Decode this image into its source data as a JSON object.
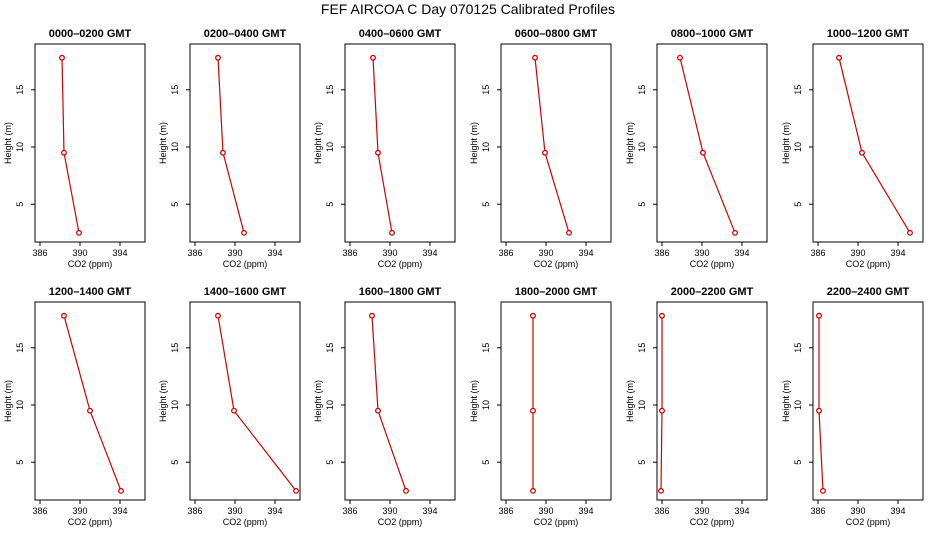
{
  "title": "FEF AIRCOA C  Day 070125  Calibrated Profiles",
  "colors": {
    "series": "#d40000",
    "axis": "#000000"
  },
  "chart_data": [
    {
      "type": "line",
      "title": "0000–0200 GMT",
      "xlabel": "CO2 (ppm)",
      "ylabel": "Height (m)",
      "xlim": [
        385.5,
        396.5
      ],
      "ylim": [
        1.7,
        19
      ],
      "xticks": [
        386,
        390,
        394
      ],
      "yticks": [
        5,
        10,
        15
      ],
      "x": [
        388.2,
        388.4,
        389.9
      ],
      "y": [
        17.8,
        9.5,
        2.5
      ]
    },
    {
      "type": "line",
      "title": "0200–0400 GMT",
      "xlabel": "CO2 (ppm)",
      "ylabel": "Height (m)",
      "xlim": [
        385.5,
        396.5
      ],
      "ylim": [
        1.7,
        19
      ],
      "xticks": [
        386,
        390,
        394
      ],
      "yticks": [
        5,
        10,
        15
      ],
      "x": [
        388.3,
        388.8,
        390.9
      ],
      "y": [
        17.8,
        9.5,
        2.5
      ]
    },
    {
      "type": "line",
      "title": "0400–0600 GMT",
      "xlabel": "CO2 (ppm)",
      "ylabel": "Height (m)",
      "xlim": [
        385.5,
        396.5
      ],
      "ylim": [
        1.7,
        19
      ],
      "xticks": [
        386,
        390,
        394
      ],
      "yticks": [
        5,
        10,
        15
      ],
      "x": [
        388.3,
        388.8,
        390.2
      ],
      "y": [
        17.8,
        9.5,
        2.5
      ]
    },
    {
      "type": "line",
      "title": "0600–0800 GMT",
      "xlabel": "CO2 (ppm)",
      "ylabel": "Height (m)",
      "xlim": [
        385.5,
        396.5
      ],
      "ylim": [
        1.7,
        19
      ],
      "xticks": [
        386,
        390,
        394
      ],
      "yticks": [
        5,
        10,
        15
      ],
      "x": [
        388.9,
        389.9,
        392.3
      ],
      "y": [
        17.8,
        9.5,
        2.5
      ]
    },
    {
      "type": "line",
      "title": "0800–1000 GMT",
      "xlabel": "CO2 (ppm)",
      "ylabel": "Height (m)",
      "xlim": [
        385.5,
        396.5
      ],
      "ylim": [
        1.7,
        19
      ],
      "xticks": [
        386,
        390,
        394
      ],
      "yticks": [
        5,
        10,
        15
      ],
      "x": [
        387.8,
        390.1,
        393.3
      ],
      "y": [
        17.8,
        9.5,
        2.5
      ]
    },
    {
      "type": "line",
      "title": "1000–1200 GMT",
      "xlabel": "CO2 (ppm)",
      "ylabel": "Height (m)",
      "xlim": [
        385.5,
        396.5
      ],
      "ylim": [
        1.7,
        19
      ],
      "xticks": [
        386,
        390,
        394
      ],
      "yticks": [
        5,
        10,
        15
      ],
      "x": [
        388.1,
        390.4,
        395.2
      ],
      "y": [
        17.8,
        9.5,
        2.5
      ]
    },
    {
      "type": "line",
      "title": "1200–1400 GMT",
      "xlabel": "CO2 (ppm)",
      "ylabel": "Height (m)",
      "xlim": [
        385.5,
        396.5
      ],
      "ylim": [
        1.7,
        19
      ],
      "xticks": [
        386,
        390,
        394
      ],
      "yticks": [
        5,
        10,
        15
      ],
      "x": [
        388.4,
        391.0,
        394.1
      ],
      "y": [
        17.8,
        9.5,
        2.5
      ]
    },
    {
      "type": "line",
      "title": "1400–1600 GMT",
      "xlabel": "CO2 (ppm)",
      "ylabel": "Height (m)",
      "xlim": [
        385.5,
        396.5
      ],
      "ylim": [
        1.7,
        19
      ],
      "xticks": [
        386,
        390,
        394
      ],
      "yticks": [
        5,
        10,
        15
      ],
      "x": [
        388.3,
        389.9,
        396.1
      ],
      "y": [
        17.8,
        9.5,
        2.5
      ]
    },
    {
      "type": "line",
      "title": "1600–1800 GMT",
      "xlabel": "CO2 (ppm)",
      "ylabel": "Height (m)",
      "xlim": [
        385.5,
        396.5
      ],
      "ylim": [
        1.7,
        19
      ],
      "xticks": [
        386,
        390,
        394
      ],
      "yticks": [
        5,
        10,
        15
      ],
      "x": [
        388.2,
        388.8,
        391.6
      ],
      "y": [
        17.8,
        9.5,
        2.5
      ]
    },
    {
      "type": "line",
      "title": "1800–2000 GMT",
      "xlabel": "CO2 (ppm)",
      "ylabel": "Height (m)",
      "xlim": [
        385.5,
        396.5
      ],
      "ylim": [
        1.7,
        19
      ],
      "xticks": [
        386,
        390,
        394
      ],
      "yticks": [
        5,
        10,
        15
      ],
      "x": [
        388.7,
        388.7,
        388.7
      ],
      "y": [
        17.8,
        9.5,
        2.5
      ]
    },
    {
      "type": "line",
      "title": "2000–2200 GMT",
      "xlabel": "CO2 (ppm)",
      "ylabel": "Height (m)",
      "xlim": [
        385.5,
        396.5
      ],
      "ylim": [
        1.7,
        19
      ],
      "xticks": [
        386,
        390,
        394
      ],
      "yticks": [
        5,
        10,
        15
      ],
      "x": [
        386.0,
        386.0,
        385.9
      ],
      "y": [
        17.8,
        9.5,
        2.5
      ]
    },
    {
      "type": "line",
      "title": "2200–2400 GMT",
      "xlabel": "CO2 (ppm)",
      "ylabel": "Height (m)",
      "xlim": [
        385.5,
        396.5
      ],
      "ylim": [
        1.7,
        19
      ],
      "xticks": [
        386,
        390,
        394
      ],
      "yticks": [
        5,
        10,
        15
      ],
      "x": [
        386.1,
        386.1,
        386.5
      ],
      "y": [
        17.8,
        9.5,
        2.5
      ]
    }
  ]
}
